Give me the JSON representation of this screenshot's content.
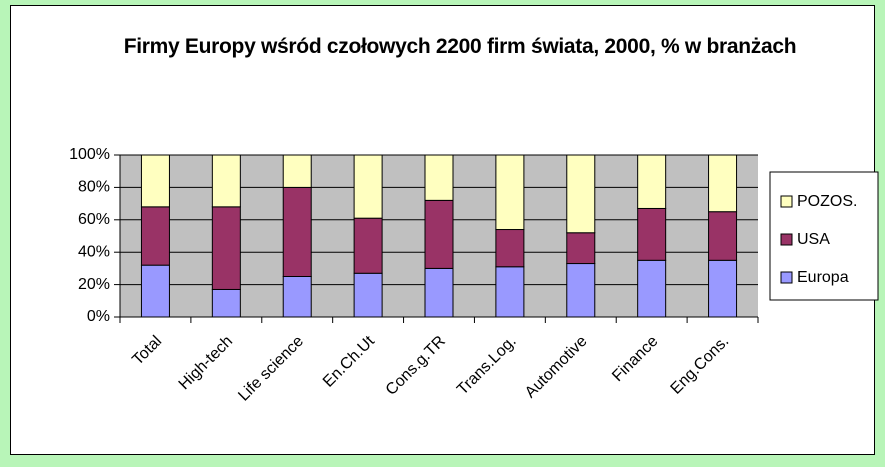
{
  "chart_data": {
    "type": "stacked_bar_percent",
    "title": "Firmy Europy wśród czołowych 2200  firm świata, 2000, % w branżach",
    "categories": [
      "Total",
      "High-tech",
      "Life science",
      "En.Ch.Ut",
      "Cons.g.TR",
      "Trans.Log.",
      "Automotive",
      "Finance",
      "Eng.Cons."
    ],
    "series": [
      {
        "name": "Europa",
        "color": "#9999ff",
        "values": [
          32,
          17,
          25,
          27,
          30,
          31,
          33,
          35,
          35
        ]
      },
      {
        "name": "USA",
        "color": "#993366",
        "values": [
          36,
          51,
          55,
          34,
          42,
          23,
          19,
          32,
          30
        ]
      },
      {
        "name": "POZOS.",
        "color": "#ffffc0",
        "values": [
          32,
          32,
          20,
          39,
          28,
          46,
          48,
          33,
          35
        ]
      }
    ],
    "ylim": [
      0,
      100
    ],
    "yticks": [
      {
        "value": 0,
        "label": "0%"
      },
      {
        "value": 20,
        "label": "20%"
      },
      {
        "value": 40,
        "label": "40%"
      },
      {
        "value": 60,
        "label": "60%"
      },
      {
        "value": 80,
        "label": "80%"
      },
      {
        "value": 100,
        "label": "100%"
      }
    ],
    "legend": "right"
  }
}
